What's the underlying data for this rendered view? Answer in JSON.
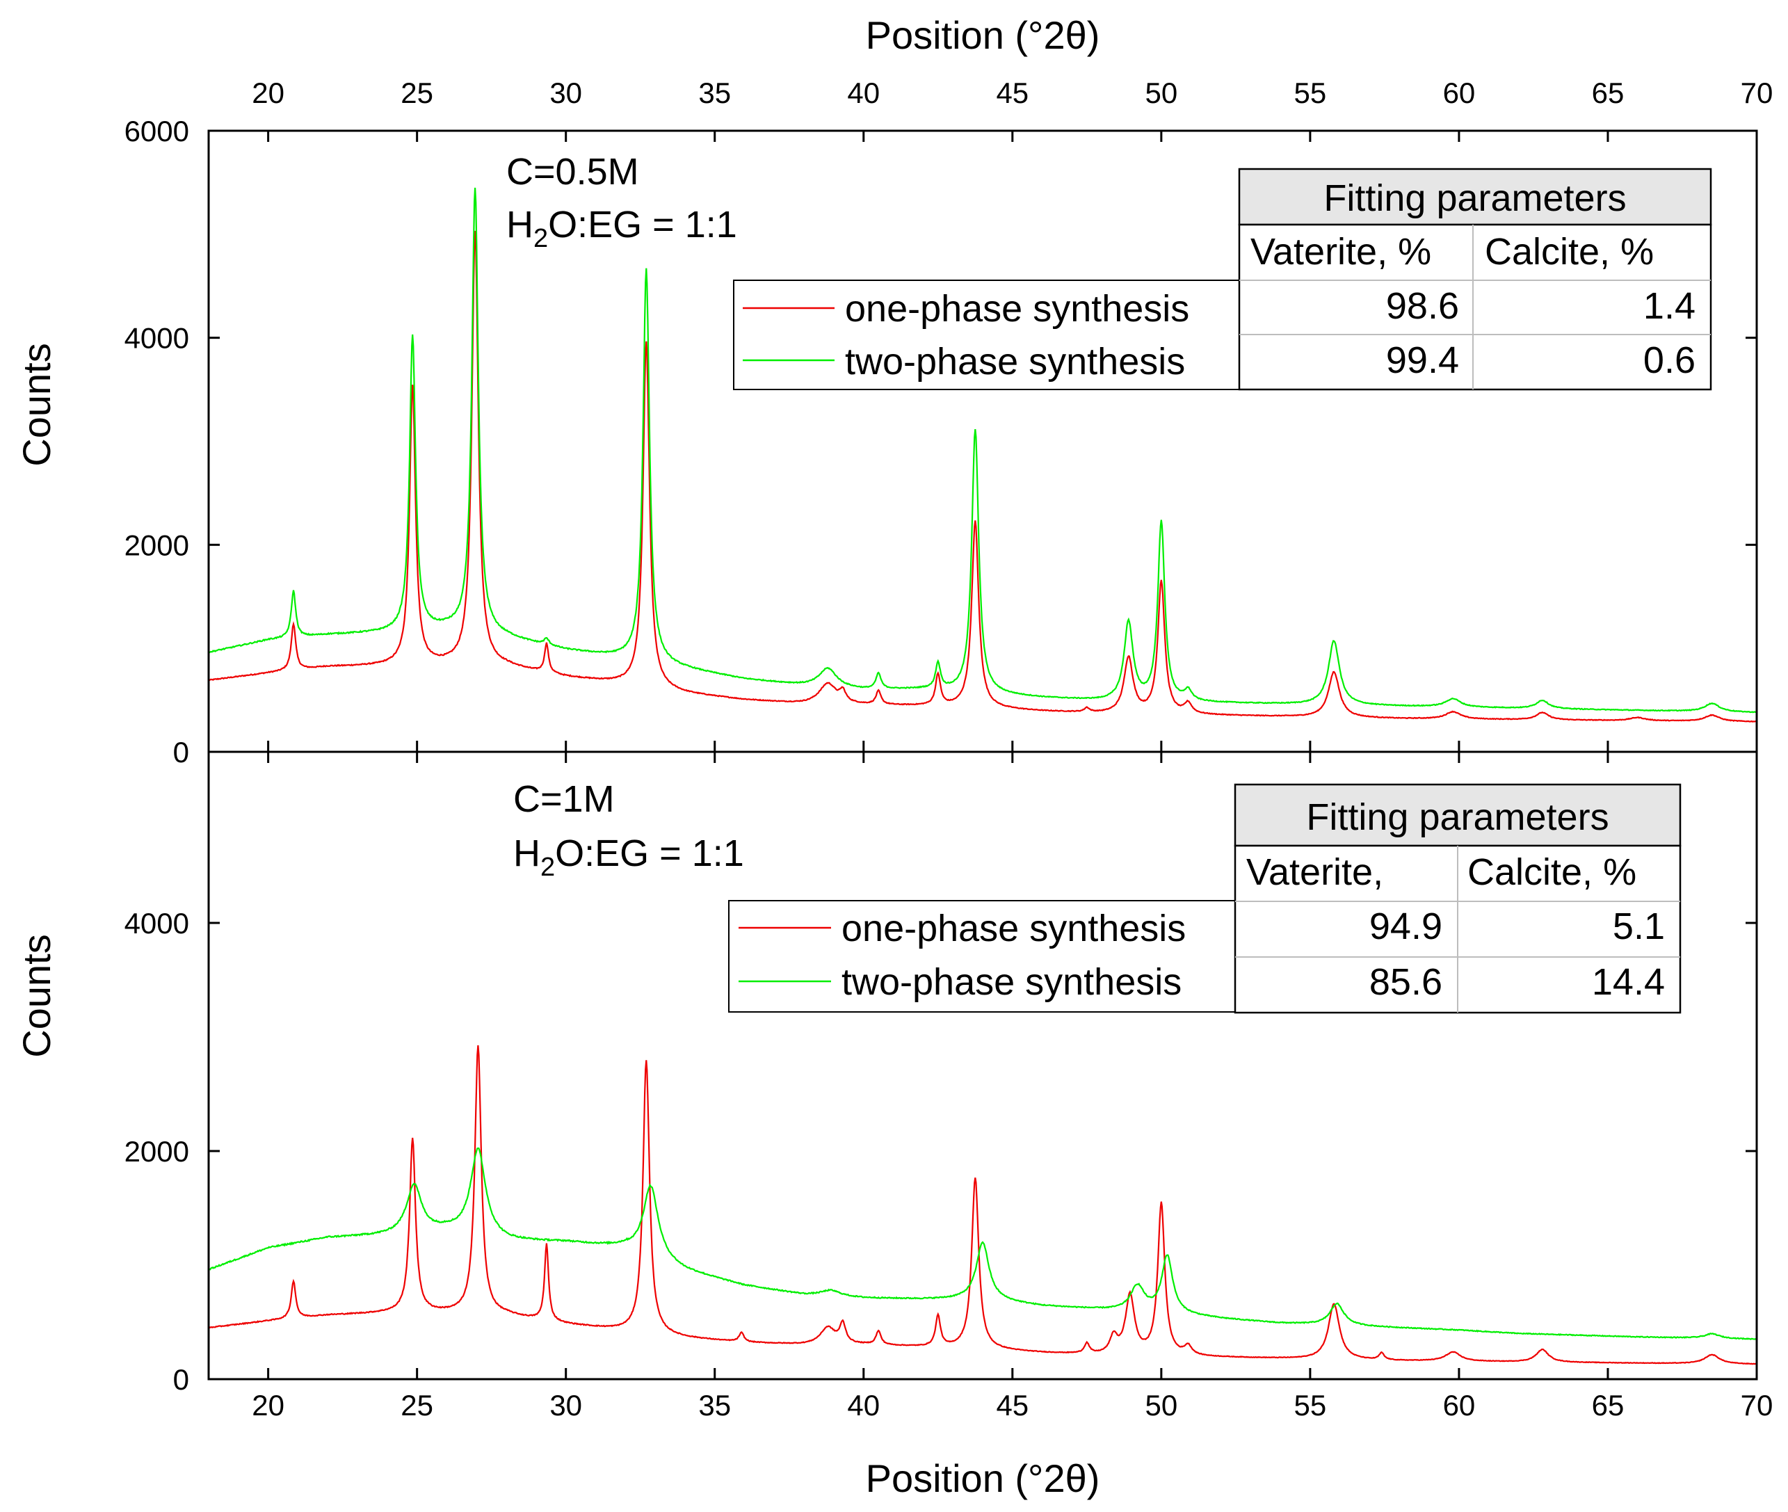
{
  "chart_data": {
    "type": "line",
    "title": "",
    "xlabel_top": "Position (°2θ)",
    "xlabel_bottom": "Position (°2θ)",
    "x_ticks": [
      20,
      25,
      30,
      35,
      40,
      45,
      50,
      55,
      60,
      65,
      70
    ],
    "xlim": [
      18,
      70
    ],
    "colors": {
      "one_phase": "#ee0000",
      "two_phase": "#00ee00"
    },
    "panels": [
      {
        "id": "top",
        "ylabel": "Counts",
        "ylim": [
          0,
          6000
        ],
        "y_ticks": [
          0,
          2000,
          4000,
          6000
        ],
        "annotation": {
          "line1": "C=0.5M",
          "line2_pre": "H",
          "line2_sub": "2",
          "line2_post": "O:EG = 1:1"
        },
        "legend": [
          "one-phase synthesis",
          "two-phase synthesis"
        ],
        "table": {
          "title": "Fitting parameters",
          "headers": [
            "Vaterite, %",
            "Calcite, %"
          ],
          "rows": [
            [
              "98.6",
              "1.4"
            ],
            [
              "99.4",
              "0.6"
            ]
          ]
        },
        "series": [
          {
            "name": "one-phase synthesis",
            "color": "#ee0000",
            "baseline": [
              [
                18,
                690
              ],
              [
                20,
                760
              ],
              [
                22,
                820
              ],
              [
                24,
                830
              ],
              [
                26,
                840
              ],
              [
                28,
                820
              ],
              [
                30,
                720
              ],
              [
                32,
                650
              ],
              [
                34,
                560
              ],
              [
                36,
                500
              ],
              [
                38,
                460
              ],
              [
                40,
                450
              ],
              [
                42,
                440
              ],
              [
                44,
                420
              ],
              [
                46,
                390
              ],
              [
                48,
                370
              ],
              [
                50,
                360
              ],
              [
                52,
                350
              ],
              [
                54,
                340
              ],
              [
                56,
                330
              ],
              [
                58,
                320
              ],
              [
                62,
                310
              ],
              [
                66,
                300
              ],
              [
                70,
                290
              ]
            ],
            "peaks": [
              [
                20.85,
                450,
                0.09
              ],
              [
                24.85,
                2700,
                0.12
              ],
              [
                26.95,
                4200,
                0.13
              ],
              [
                29.35,
                280,
                0.08
              ],
              [
                32.7,
                3350,
                0.13
              ],
              [
                38.8,
                200,
                0.35
              ],
              [
                39.3,
                100,
                0.12
              ],
              [
                40.5,
                130,
                0.1
              ],
              [
                42.5,
                300,
                0.1
              ],
              [
                43.75,
                1800,
                0.14
              ],
              [
                47.5,
                40,
                0.1
              ],
              [
                48.9,
                540,
                0.18
              ],
              [
                50.0,
                1280,
                0.14
              ],
              [
                50.9,
                100,
                0.15
              ],
              [
                55.8,
                440,
                0.22
              ],
              [
                59.8,
                70,
                0.3
              ],
              [
                62.8,
                70,
                0.25
              ],
              [
                66.0,
                30,
                0.3
              ],
              [
                68.5,
                60,
                0.3
              ]
            ]
          },
          {
            "name": "two-phase synthesis",
            "color": "#00ee00",
            "baseline": [
              [
                18,
                960
              ],
              [
                20,
                1080
              ],
              [
                22,
                1130
              ],
              [
                24,
                1150
              ],
              [
                26,
                1180
              ],
              [
                28,
                1100
              ],
              [
                30,
                980
              ],
              [
                32,
                900
              ],
              [
                34,
                800
              ],
              [
                36,
                700
              ],
              [
                38,
                640
              ],
              [
                40,
                600
              ],
              [
                42,
                600
              ],
              [
                44,
                560
              ],
              [
                46,
                520
              ],
              [
                48,
                490
              ],
              [
                50,
                480
              ],
              [
                52,
                470
              ],
              [
                54,
                460
              ],
              [
                56,
                450
              ],
              [
                58,
                440
              ],
              [
                62,
                420
              ],
              [
                66,
                400
              ],
              [
                70,
                380
              ]
            ],
            "peaks": [
              [
                20.85,
                450,
                0.09
              ],
              [
                24.85,
                2850,
                0.12
              ],
              [
                26.95,
                4300,
                0.13
              ],
              [
                29.35,
                60,
                0.1
              ],
              [
                32.7,
                3800,
                0.13
              ],
              [
                38.8,
                180,
                0.35
              ],
              [
                40.5,
                150,
                0.1
              ],
              [
                42.5,
                250,
                0.1
              ],
              [
                43.75,
                2550,
                0.14
              ],
              [
                48.9,
                760,
                0.18
              ],
              [
                50.0,
                1730,
                0.14
              ],
              [
                50.9,
                100,
                0.15
              ],
              [
                55.8,
                620,
                0.22
              ],
              [
                59.8,
                80,
                0.3
              ],
              [
                62.8,
                80,
                0.25
              ],
              [
                68.5,
                80,
                0.3
              ]
            ]
          }
        ]
      },
      {
        "id": "bottom",
        "ylabel": "Counts",
        "ylim": [
          0,
          5500
        ],
        "y_ticks": [
          0,
          2000,
          4000
        ],
        "annotation": {
          "line1": "C=1M",
          "line2_pre": "H",
          "line2_sub": "2",
          "line2_post": "O:EG = 1:1"
        },
        "legend": [
          "one-phase synthesis",
          "two-phase synthesis"
        ],
        "table": {
          "title": "Fitting parameters",
          "headers": [
            "Vaterite,",
            "Calcite, %"
          ],
          "rows": [
            [
              "94.9",
              "5.1"
            ],
            [
              "85.6",
              "14.4"
            ]
          ]
        },
        "series": [
          {
            "name": "one-phase synthesis",
            "color": "#ee0000",
            "baseline": [
              [
                18,
                450
              ],
              [
                20,
                510
              ],
              [
                22,
                560
              ],
              [
                24,
                580
              ],
              [
                26,
                580
              ],
              [
                28,
                560
              ],
              [
                30,
                480
              ],
              [
                32,
                420
              ],
              [
                34,
                360
              ],
              [
                36,
                320
              ],
              [
                38,
                300
              ],
              [
                40,
                300
              ],
              [
                42,
                280
              ],
              [
                44,
                260
              ],
              [
                46,
                230
              ],
              [
                48,
                210
              ],
              [
                50,
                200
              ],
              [
                52,
                190
              ],
              [
                54,
                180
              ],
              [
                56,
                170
              ],
              [
                58,
                160
              ],
              [
                62,
                150
              ],
              [
                66,
                140
              ],
              [
                70,
                130
              ]
            ],
            "peaks": [
              [
                20.85,
                330,
                0.09
              ],
              [
                24.85,
                1520,
                0.12
              ],
              [
                27.05,
                2350,
                0.13
              ],
              [
                29.35,
                670,
                0.08
              ],
              [
                32.7,
                2400,
                0.13
              ],
              [
                35.9,
                80,
                0.1
              ],
              [
                38.8,
                150,
                0.3
              ],
              [
                39.3,
                170,
                0.12
              ],
              [
                40.5,
                120,
                0.1
              ],
              [
                42.5,
                270,
                0.1
              ],
              [
                43.75,
                1500,
                0.14
              ],
              [
                47.5,
                90,
                0.1
              ],
              [
                48.4,
                150,
                0.15
              ],
              [
                48.95,
                520,
                0.18
              ],
              [
                50.0,
                1330,
                0.14
              ],
              [
                50.9,
                80,
                0.15
              ],
              [
                55.8,
                490,
                0.22
              ],
              [
                57.4,
                60,
                0.1
              ],
              [
                59.8,
                80,
                0.3
              ],
              [
                62.8,
                110,
                0.25
              ],
              [
                68.5,
                80,
                0.3
              ]
            ]
          },
          {
            "name": "two-phase synthesis",
            "color": "#00ee00",
            "baseline": [
              [
                18,
                960
              ],
              [
                20,
                1150
              ],
              [
                22,
                1240
              ],
              [
                24,
                1260
              ],
              [
                26,
                1300
              ],
              [
                28,
                1210
              ],
              [
                30,
                1200
              ],
              [
                32,
                1150
              ],
              [
                34,
                950
              ],
              [
                36,
                820
              ],
              [
                38,
                740
              ],
              [
                40,
                710
              ],
              [
                42,
                700
              ],
              [
                44,
                700
              ],
              [
                46,
                640
              ],
              [
                48,
                610
              ],
              [
                50,
                580
              ],
              [
                52,
                530
              ],
              [
                54,
                490
              ],
              [
                56,
                470
              ],
              [
                58,
                450
              ],
              [
                60,
                430
              ],
              [
                62,
                400
              ],
              [
                66,
                370
              ],
              [
                70,
                350
              ]
            ],
            "peaks": [
              [
                24.9,
                420,
                0.3
              ],
              [
                27.05,
                760,
                0.3
              ],
              [
                32.85,
                630,
                0.3
              ],
              [
                38.9,
                50,
                0.4
              ],
              [
                44.0,
                500,
                0.25
              ],
              [
                49.2,
                220,
                0.28
              ],
              [
                50.2,
                500,
                0.22
              ],
              [
                55.9,
                190,
                0.28
              ],
              [
                68.5,
                40,
                0.3
              ]
            ]
          }
        ]
      }
    ]
  }
}
